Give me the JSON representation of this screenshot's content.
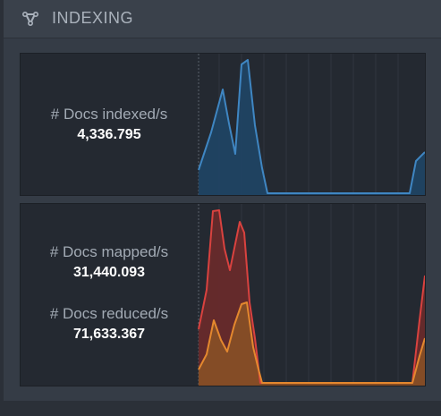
{
  "header": {
    "title": "INDEXING",
    "icon": "routing-icon",
    "accent_color": "#aab2bc"
  },
  "indexed_card": {
    "label": "# Docs indexed/s",
    "value": "4,336.795",
    "series_color": "#3f86c2"
  },
  "mapped_card": {
    "mapped_label": "# Docs mapped/s",
    "mapped_value": "31,440.093",
    "reduced_label": "# Docs reduced/s",
    "reduced_value": "71,633.367",
    "mapped_color": "#d9423f",
    "reduced_color": "#e4882e"
  }
}
